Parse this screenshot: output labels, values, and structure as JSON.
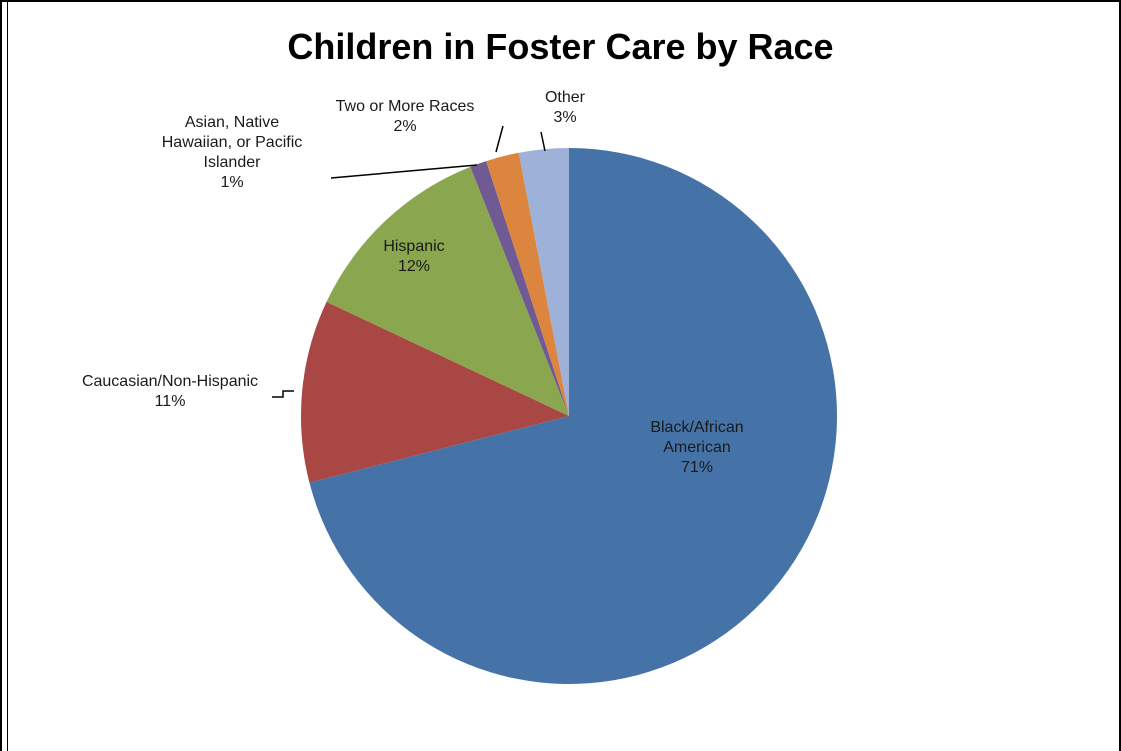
{
  "chart_data": {
    "type": "pie",
    "title": "Children in Foster Care by Race",
    "slices": [
      {
        "name": "Black/African American",
        "label_lines": [
          "Black/African",
          "American"
        ],
        "value": 71,
        "color": "#4673a7"
      },
      {
        "name": "Caucasian/Non-Hispanic",
        "label_lines": [
          "Caucasian/Non-Hispanic"
        ],
        "value": 11,
        "color": "#a84744"
      },
      {
        "name": "Hispanic",
        "label_lines": [
          "Hispanic"
        ],
        "value": 12,
        "color": "#8aa64f"
      },
      {
        "name": "Asian, Native Hawaiian, or Pacific Islander",
        "label_lines": [
          "Asian, Native",
          "Hawaiian, or Pacific",
          "Islander"
        ],
        "value": 1,
        "color": "#6f5a94"
      },
      {
        "name": "Two or More Races",
        "label_lines": [
          "Two or More Races"
        ],
        "value": 2,
        "color": "#dc853e"
      },
      {
        "name": "Other",
        "label_lines": [
          "Other"
        ],
        "value": 3,
        "color": "#9eb1d8"
      }
    ],
    "value_suffix": "%"
  }
}
